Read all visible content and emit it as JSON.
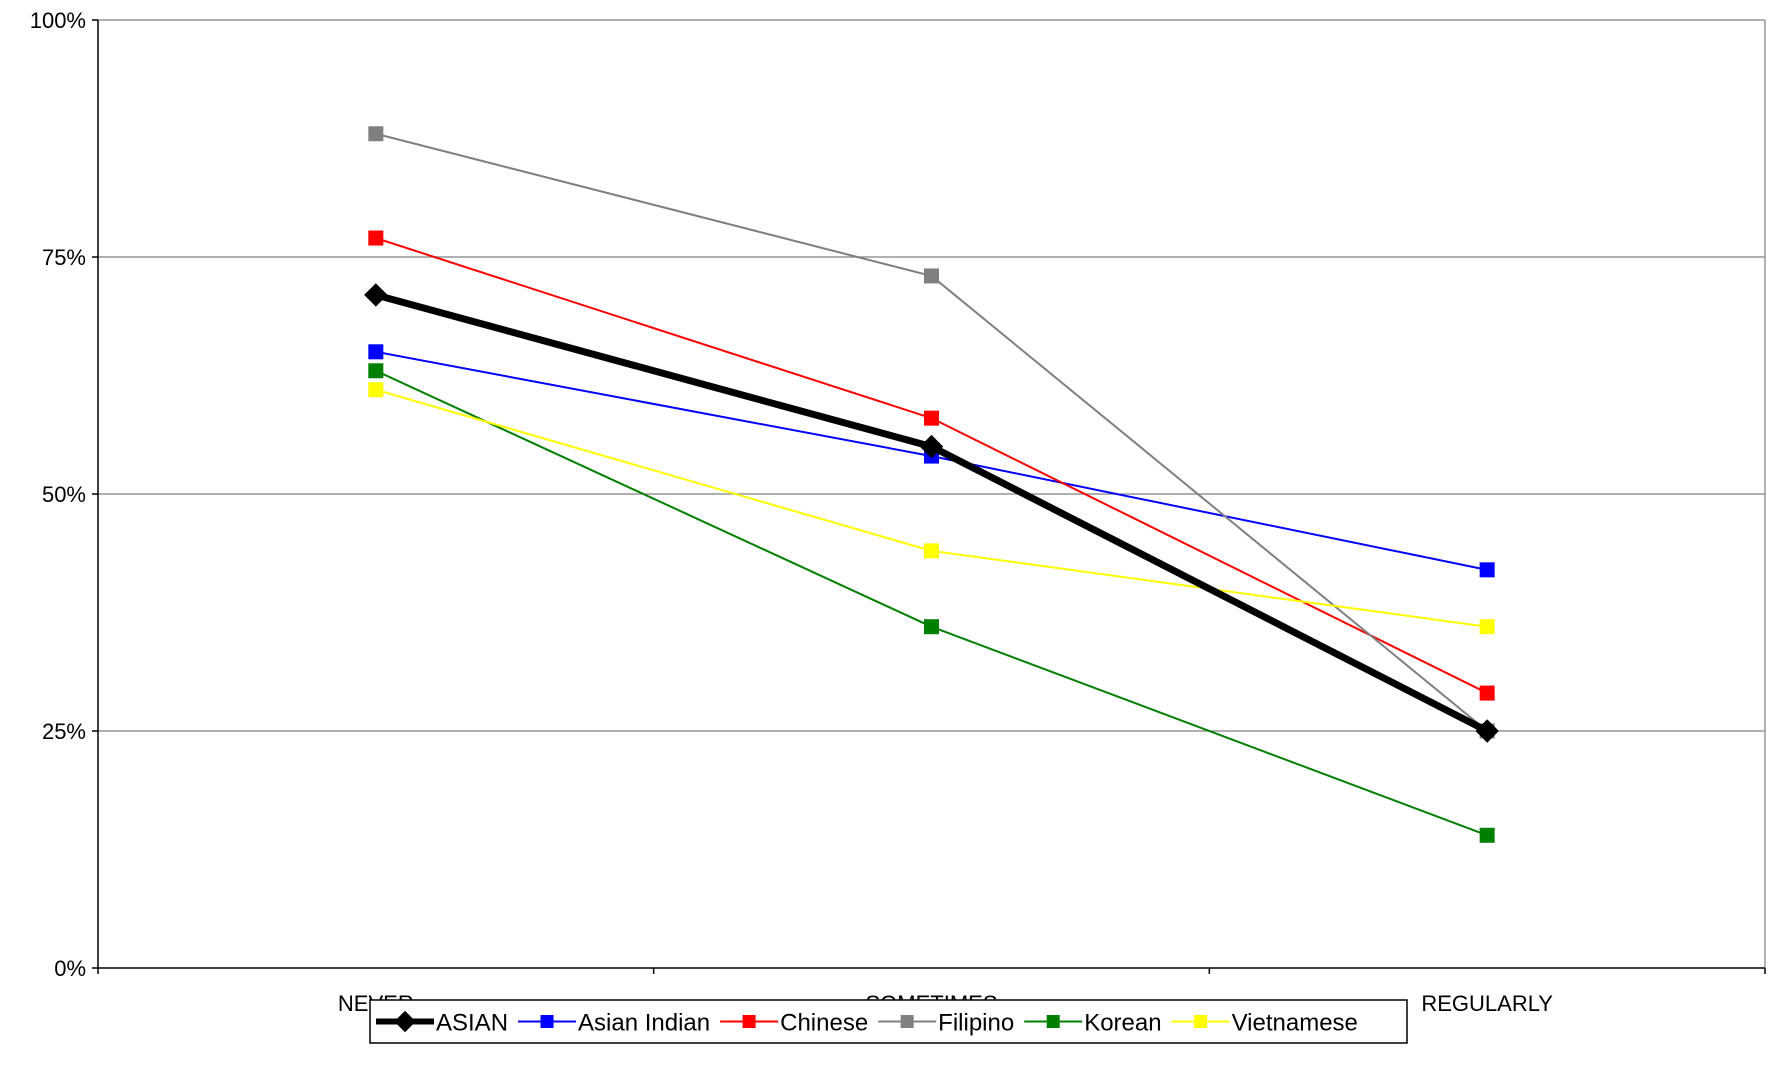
{
  "chart_data": {
    "type": "line",
    "categories": [
      "NEVER",
      "SOMETIMES",
      "REGULARLY"
    ],
    "ylim": [
      0,
      100
    ],
    "yticks": [
      0,
      25,
      50,
      75,
      100
    ],
    "ytick_labels": [
      "0%",
      "25%",
      "50%",
      "75%",
      "100%"
    ],
    "grid": true,
    "legend_position": "bottom",
    "series": [
      {
        "name": "ASIAN",
        "values": [
          71,
          55,
          25
        ],
        "color": "#000000",
        "marker": "diamond",
        "bold": true
      },
      {
        "name": "Asian Indian",
        "values": [
          65,
          54,
          42
        ],
        "color": "#0000ff",
        "marker": "square"
      },
      {
        "name": "Chinese",
        "values": [
          77,
          58,
          29
        ],
        "color": "#ff0000",
        "marker": "square"
      },
      {
        "name": "Filipino",
        "values": [
          88,
          73,
          25
        ],
        "color": "#808080",
        "marker": "square"
      },
      {
        "name": "Korean",
        "values": [
          63,
          36,
          14
        ],
        "color": "#008000",
        "marker": "square"
      },
      {
        "name": "Vietnamese",
        "values": [
          61,
          44,
          36
        ],
        "color": "#ffff00",
        "marker": "square"
      }
    ]
  }
}
